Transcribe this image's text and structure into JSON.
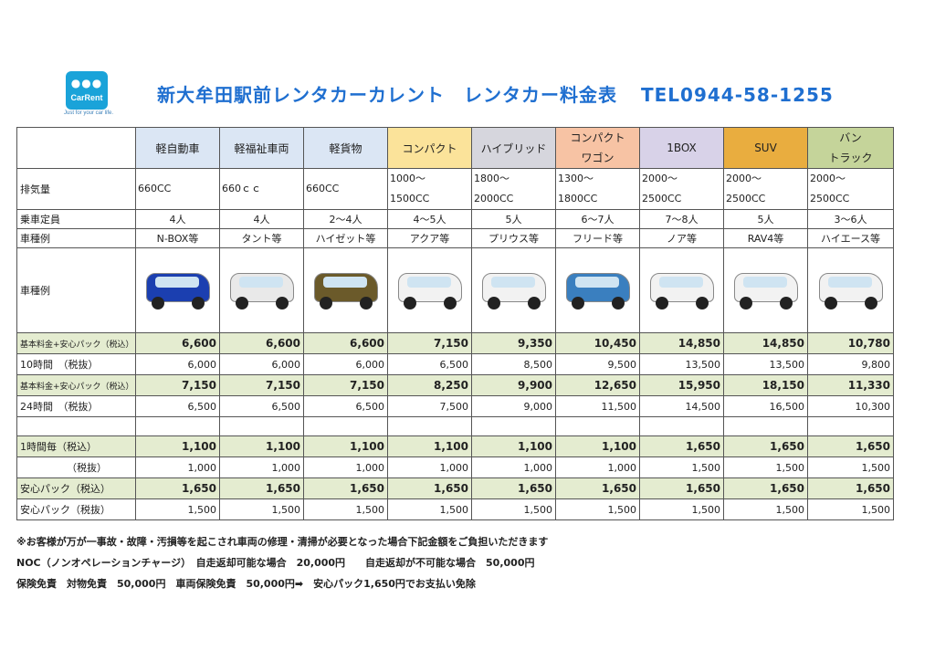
{
  "logo": {
    "dots": "●●●",
    "name": "CarRent",
    "tagline": "Just for your car life."
  },
  "title": "新大牟田駅前レンタカーカレント　レンタカー料金表",
  "tel": "TEL0944-58-1255",
  "columns": [
    {
      "label": "軽自動車",
      "lines": [],
      "color": "#dbe6f4",
      "displacement": "660CC",
      "capacity": "4人",
      "example": "N-BOX等",
      "car_color": "#1b3fb0"
    },
    {
      "label": "軽福祉車両",
      "lines": [],
      "color": "#dbe6f4",
      "displacement": "660ｃｃ",
      "capacity": "4人",
      "example": "タント等",
      "car_color": "#e9e9e9"
    },
    {
      "label": "軽貨物",
      "lines": [],
      "color": "#dbe6f4",
      "displacement": "660CC",
      "capacity": "2～4人",
      "example": "ハイゼット等",
      "car_color": "#6b5a2a"
    },
    {
      "label": "コンパクト",
      "lines": [],
      "color": "#fbe39a",
      "displacement": "1000～\n1500CC",
      "capacity": "4～5人",
      "example": "アクア等",
      "car_color": "#f2f2f2"
    },
    {
      "label": "ハイブリッド",
      "lines": [],
      "color": "#d6d6dd",
      "displacement": "1800～\n2000CC",
      "capacity": "5人",
      "example": "プリウス等",
      "car_color": "#f2f2f2"
    },
    {
      "label": "",
      "lines": [
        "コンパクト",
        "ワゴン"
      ],
      "color": "#f7c3a4",
      "displacement": "1300～\n1800CC",
      "capacity": "6～7人",
      "example": "フリード等",
      "car_color": "#3a7fbf"
    },
    {
      "label": "1BOX",
      "lines": [],
      "color": "#d8d2e8",
      "displacement": "2000～\n2500CC",
      "capacity": "7～8人",
      "example": "ノア等",
      "car_color": "#f2f2f2"
    },
    {
      "label": "SUV",
      "lines": [],
      "color": "#e9ad3f",
      "displacement": "2000～\n2500CC",
      "capacity": "5人",
      "example": "RAV4等",
      "car_color": "#f2f2f2"
    },
    {
      "label": "",
      "lines": [
        "バン",
        "トラック"
      ],
      "color": "#c5d49a",
      "displacement": "2000～\n2500CC",
      "capacity": "3～6人",
      "example": "ハイエース等",
      "car_color": "#f2f2f2"
    }
  ],
  "row_labels": {
    "displacement": "排気量",
    "capacity": "乗車定員",
    "example": "車種例",
    "photo": "車種例",
    "plan10_incl": "基本料金+安心パック（税込）",
    "plan10_excl": "10時間　（税抜）",
    "plan24_incl": "基本料金+安心パック（税込）",
    "plan24_excl": "24時間　（税抜）",
    "hourly_incl": "1時間毎（税込）",
    "hourly_excl": "（税抜）",
    "anshin_incl": "安心パック（税込）",
    "anshin_excl": "安心パック（税抜）"
  },
  "prices": {
    "plan10_incl": [
      "6,600",
      "6,600",
      "6,600",
      "7,150",
      "9,350",
      "10,450",
      "14,850",
      "14,850",
      "10,780"
    ],
    "plan10_excl": [
      "6,000",
      "6,000",
      "6,000",
      "6,500",
      "8,500",
      "9,500",
      "13,500",
      "13,500",
      "9,800"
    ],
    "plan24_incl": [
      "7,150",
      "7,150",
      "7,150",
      "8,250",
      "9,900",
      "12,650",
      "15,950",
      "18,150",
      "11,330"
    ],
    "plan24_excl": [
      "6,500",
      "6,500",
      "6,500",
      "7,500",
      "9,000",
      "11,500",
      "14,500",
      "16,500",
      "10,300"
    ],
    "hourly_incl": [
      "1,100",
      "1,100",
      "1,100",
      "1,100",
      "1,100",
      "1,100",
      "1,650",
      "1,650",
      "1,650"
    ],
    "hourly_excl": [
      "1,000",
      "1,000",
      "1,000",
      "1,000",
      "1,000",
      "1,000",
      "1,500",
      "1,500",
      "1,500"
    ],
    "anshin_incl": [
      "1,650",
      "1,650",
      "1,650",
      "1,650",
      "1,650",
      "1,650",
      "1,650",
      "1,650",
      "1,650"
    ],
    "anshin_excl": [
      "1,500",
      "1,500",
      "1,500",
      "1,500",
      "1,500",
      "1,500",
      "1,500",
      "1,500",
      "1,500"
    ]
  },
  "notes": [
    "※お客様が万が一事故・故障・汚損等を起こされ車両の修理・清掃が必要となった場合下記金額をご負担いただきます",
    "NOC（ノンオペレーションチャージ）　自走返却可能な場合　20,000円　　自走返却が不可能な場合　50,000円",
    "保険免責　対物免責　50,000円　車両保険免責　50,000円➡　安心パック1,650円でお支払い免除"
  ]
}
